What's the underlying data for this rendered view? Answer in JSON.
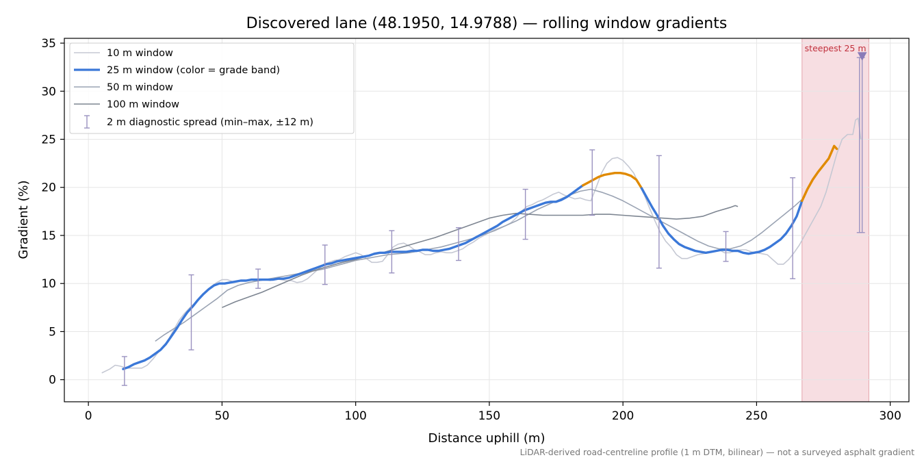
{
  "chart_data": {
    "type": "line",
    "title": "Discovered lane (48.1950, 14.9788) — rolling window gradients",
    "xlabel": "Distance uphill (m)",
    "ylabel": "Gradient (%)",
    "xlim": [
      -9,
      307
    ],
    "ylim": [
      -2.3,
      35.5
    ],
    "xticks": [
      0,
      50,
      100,
      150,
      200,
      250,
      300
    ],
    "yticks": [
      0,
      5,
      10,
      15,
      20,
      25,
      30,
      35
    ],
    "grid": true,
    "legend_position": "top-left",
    "footnote": "LiDAR-derived road-centreline profile (1 m DTM, bilinear) — not a surveyed asphalt gradient",
    "colors": {
      "w10": "#c5c8d3",
      "w25_normal": "#3b78d8",
      "w25_steep": "#e08a00",
      "w50": "#9aa3b3",
      "w100": "#7d8591",
      "spread": "#9a92c0",
      "steep_band": "#f2cdd2",
      "annotation": "#c0303c"
    },
    "series": [
      {
        "name": "10 m window",
        "x": [
          5,
          8,
          10,
          12,
          14,
          16,
          18,
          20,
          22,
          24,
          26,
          28,
          30,
          32,
          34,
          36,
          38,
          40,
          42,
          44,
          46,
          48,
          50,
          52,
          54,
          56,
          58,
          60,
          62,
          64,
          66,
          68,
          70,
          72,
          74,
          76,
          78,
          80,
          82,
          84,
          86,
          88,
          90,
          92,
          94,
          96,
          98,
          100,
          102,
          104,
          106,
          108,
          110,
          112,
          114,
          116,
          118,
          120,
          122,
          124,
          126,
          128,
          130,
          132,
          134,
          136,
          138,
          140,
          142,
          144,
          146,
          148,
          150,
          152,
          154,
          156,
          158,
          160,
          162,
          164,
          166,
          168,
          170,
          172,
          174,
          176,
          178,
          180,
          182,
          184,
          186,
          188,
          190,
          192,
          194,
          196,
          198,
          200,
          202,
          204,
          206,
          208,
          210,
          212,
          214,
          216,
          218,
          220,
          222,
          224,
          226,
          228,
          230,
          232,
          234,
          236,
          238,
          240,
          242,
          244,
          246,
          248,
          250,
          252,
          254,
          256,
          258,
          260,
          262,
          264,
          266,
          268,
          270,
          272,
          274,
          276,
          278,
          280,
          282,
          284,
          286,
          287,
          288,
          289
        ],
        "y": [
          0.7,
          1.1,
          1.5,
          1.4,
          1.2,
          1.2,
          1.2,
          1.2,
          1.5,
          2.1,
          2.8,
          3.4,
          4.2,
          5.2,
          6.2,
          6.9,
          7.5,
          8.0,
          8.7,
          9.2,
          9.7,
          10.1,
          10.4,
          10.4,
          10.2,
          10.2,
          10.3,
          10.4,
          10.3,
          10.4,
          10.4,
          10.3,
          10.5,
          10.4,
          10.3,
          10.3,
          10.1,
          10.2,
          10.5,
          11.0,
          11.5,
          12.0,
          12.2,
          12.4,
          12.5,
          12.8,
          13.0,
          13.2,
          13.0,
          12.6,
          12.2,
          12.2,
          12.3,
          13.0,
          13.8,
          14.1,
          14.2,
          13.9,
          13.5,
          13.3,
          13.0,
          13.0,
          13.2,
          13.3,
          13.2,
          13.2,
          13.4,
          13.6,
          14.0,
          14.3,
          14.7,
          15.0,
          15.3,
          15.6,
          15.8,
          16.0,
          16.3,
          16.8,
          17.5,
          18.0,
          18.2,
          18.5,
          18.7,
          19.0,
          19.3,
          19.5,
          19.2,
          19.0,
          18.8,
          18.9,
          18.7,
          18.6,
          20.0,
          21.5,
          22.5,
          23.0,
          23.1,
          22.8,
          22.2,
          21.5,
          20.3,
          19.2,
          17.8,
          16.5,
          15.3,
          14.4,
          13.8,
          13.0,
          12.6,
          12.6,
          12.8,
          13.0,
          13.1,
          13.2,
          13.4,
          13.5,
          13.2,
          13.2,
          13.4,
          13.5,
          13.5,
          13.3,
          13.2,
          13.1,
          13.0,
          12.5,
          12.0,
          12.0,
          12.5,
          13.2,
          14.0,
          15.0,
          16.0,
          17.0,
          18.0,
          19.5,
          21.5,
          23.5,
          25.0,
          25.5,
          25.5,
          27.0,
          27.2,
          25.0
        ]
      },
      {
        "name": "25 m window (color = grade band)",
        "x": [
          13,
          15,
          17,
          19,
          21,
          23,
          25,
          27,
          29,
          31,
          33,
          35,
          37,
          39,
          41,
          43,
          45,
          47,
          49,
          51,
          53,
          55,
          57,
          59,
          61,
          63,
          65,
          67,
          69,
          71,
          73,
          75,
          77,
          79,
          81,
          83,
          85,
          87,
          89,
          91,
          93,
          95,
          97,
          99,
          101,
          103,
          105,
          107,
          109,
          111,
          113,
          115,
          117,
          119,
          121,
          123,
          125,
          127,
          129,
          131,
          133,
          135,
          137,
          139,
          141,
          143,
          145,
          147,
          149,
          151,
          153,
          155,
          157,
          159,
          161,
          163,
          165,
          167,
          169,
          171,
          173,
          175,
          177,
          179,
          181,
          183,
          185,
          187,
          189,
          191,
          193,
          195,
          197,
          199,
          201,
          203,
          205,
          207,
          209,
          211,
          213,
          215,
          217,
          219,
          221,
          223,
          225,
          227,
          229,
          231,
          233,
          235,
          237,
          239,
          241,
          243,
          245,
          247,
          249,
          251,
          253,
          255,
          257,
          259,
          261,
          263,
          265,
          267,
          269,
          271,
          273,
          275,
          277,
          279,
          280
        ],
        "y": [
          1.1,
          1.3,
          1.6,
          1.8,
          2.0,
          2.3,
          2.7,
          3.1,
          3.7,
          4.5,
          5.3,
          6.2,
          7.0,
          7.6,
          8.3,
          8.9,
          9.4,
          9.8,
          10.0,
          10.0,
          10.1,
          10.2,
          10.3,
          10.3,
          10.4,
          10.4,
          10.4,
          10.4,
          10.4,
          10.5,
          10.5,
          10.6,
          10.8,
          11.0,
          11.2,
          11.4,
          11.6,
          11.8,
          12.0,
          12.1,
          12.3,
          12.4,
          12.5,
          12.6,
          12.7,
          12.8,
          12.9,
          13.1,
          13.2,
          13.2,
          13.3,
          13.3,
          13.3,
          13.3,
          13.4,
          13.4,
          13.5,
          13.5,
          13.4,
          13.4,
          13.5,
          13.6,
          13.8,
          14.0,
          14.2,
          14.5,
          14.8,
          15.1,
          15.4,
          15.7,
          16.0,
          16.4,
          16.7,
          17.0,
          17.3,
          17.6,
          17.8,
          18.0,
          18.2,
          18.4,
          18.5,
          18.5,
          18.7,
          19.0,
          19.4,
          19.8,
          20.2,
          20.5,
          20.8,
          21.1,
          21.3,
          21.4,
          21.5,
          21.5,
          21.4,
          21.2,
          20.8,
          19.9,
          18.9,
          17.9,
          17.0,
          16.0,
          15.2,
          14.6,
          14.1,
          13.8,
          13.6,
          13.4,
          13.3,
          13.2,
          13.3,
          13.4,
          13.5,
          13.5,
          13.4,
          13.4,
          13.2,
          13.1,
          13.2,
          13.3,
          13.5,
          13.8,
          14.2,
          14.6,
          15.2,
          16.0,
          17.0,
          18.6,
          19.8,
          20.8,
          21.6,
          22.3,
          23.0,
          24.3,
          24.0
        ]
      },
      {
        "name": "50 m window",
        "x": [
          25,
          28,
          32,
          36,
          40,
          44,
          48,
          52,
          56,
          60,
          64,
          68,
          72,
          76,
          80,
          84,
          88,
          92,
          96,
          100,
          104,
          108,
          112,
          116,
          120,
          124,
          128,
          132,
          136,
          140,
          144,
          148,
          152,
          156,
          160,
          164,
          168,
          172,
          176,
          180,
          184,
          188,
          192,
          196,
          200,
          204,
          208,
          212,
          216,
          220,
          224,
          228,
          232,
          236,
          240,
          244,
          248,
          252,
          256,
          260,
          264,
          268
        ],
        "y": [
          4.0,
          4.6,
          5.3,
          6.0,
          6.8,
          7.6,
          8.4,
          9.3,
          9.8,
          10.1,
          10.3,
          10.5,
          10.7,
          10.9,
          11.1,
          11.3,
          11.5,
          11.8,
          12.1,
          12.4,
          12.6,
          12.8,
          13.0,
          13.1,
          13.2,
          13.4,
          13.6,
          13.8,
          14.1,
          14.4,
          14.7,
          15.1,
          15.5,
          16.0,
          16.5,
          17.1,
          17.7,
          18.2,
          18.7,
          19.2,
          19.6,
          19.8,
          19.5,
          19.1,
          18.6,
          18.0,
          17.4,
          16.8,
          16.2,
          15.6,
          15.0,
          14.4,
          13.9,
          13.6,
          13.6,
          13.9,
          14.5,
          15.3,
          16.2,
          17.1,
          18.0,
          19.0
        ]
      },
      {
        "name": "100 m window",
        "x": [
          50,
          55,
          60,
          65,
          70,
          75,
          80,
          85,
          90,
          95,
          100,
          105,
          110,
          115,
          120,
          125,
          130,
          135,
          140,
          145,
          150,
          155,
          160,
          165,
          170,
          175,
          180,
          185,
          190,
          195,
          200,
          205,
          210,
          215,
          220,
          225,
          230,
          235,
          240,
          242,
          243
        ],
        "y": [
          7.5,
          8.1,
          8.6,
          9.1,
          9.7,
          10.3,
          10.9,
          11.4,
          11.8,
          12.2,
          12.5,
          12.9,
          13.2,
          13.6,
          14.0,
          14.4,
          14.8,
          15.3,
          15.8,
          16.3,
          16.8,
          17.1,
          17.3,
          17.2,
          17.1,
          17.1,
          17.1,
          17.1,
          17.2,
          17.2,
          17.1,
          17.0,
          16.9,
          16.8,
          16.7,
          16.8,
          17.0,
          17.5,
          17.9,
          18.1,
          18.0
        ]
      }
    ],
    "w25_steep_segments": [
      [
        185,
        207
      ],
      [
        267,
        280
      ]
    ],
    "spread": {
      "name": "2 m diagnostic spread (min–max, ±12 m)",
      "bars": [
        {
          "x": 13.5,
          "min": -0.6,
          "max": 2.4
        },
        {
          "x": 38.5,
          "min": 3.1,
          "max": 10.9
        },
        {
          "x": 63.5,
          "min": 9.5,
          "max": 11.5
        },
        {
          "x": 88.5,
          "min": 9.9,
          "max": 14.0
        },
        {
          "x": 113.5,
          "min": 11.1,
          "max": 15.5
        },
        {
          "x": 138.5,
          "min": 12.4,
          "max": 15.8
        },
        {
          "x": 163.5,
          "min": 14.6,
          "max": 19.8
        },
        {
          "x": 188.5,
          "min": 17.1,
          "max": 23.9
        },
        {
          "x": 213.5,
          "min": 11.6,
          "max": 23.3
        },
        {
          "x": 238.5,
          "min": 12.3,
          "max": 15.4
        },
        {
          "x": 263.5,
          "min": 10.5,
          "max": 21.0
        },
        {
          "x": 288.5,
          "min": 15.3,
          "max": 33.5
        },
        {
          "x": 289.5,
          "min": 15.3,
          "max": 33.5
        }
      ]
    },
    "steep_band": {
      "x_start": 267,
      "x_end": 292,
      "label": "steepest 25 m",
      "marker": {
        "x": 289.5,
        "y": 33.6
      }
    }
  }
}
